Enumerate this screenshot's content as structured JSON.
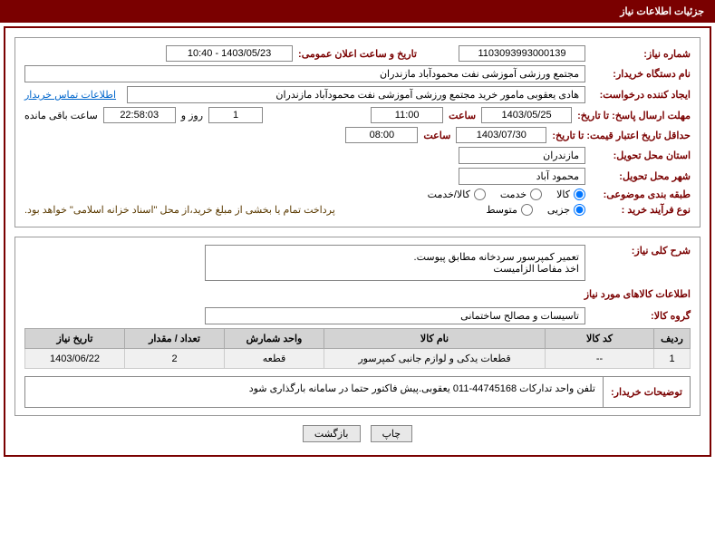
{
  "header": {
    "title": "جزئیات اطلاعات نیاز"
  },
  "need": {
    "number_label": "شماره نیاز:",
    "number": "1103093993000139",
    "announce_label": "تاریخ و ساعت اعلان عمومی:",
    "announce_value": "1403/05/23 - 10:40",
    "buyer_org_label": "نام دستگاه خریدار:",
    "buyer_org": "مجتمع ورزشی آموزشی نفت محمودآباد مازندران",
    "requester_label": "ایجاد کننده درخواست:",
    "requester": "هادی یعقوبی مامور خرید مجتمع ورزشی آموزشی نفت محمودآباد مازندران",
    "contact_link": "اطلاعات تماس خریدار",
    "response_due_label": "مهلت ارسال پاسخ: تا تاریخ:",
    "response_date": "1403/05/25",
    "time_label": "ساعت",
    "response_time": "11:00",
    "days": "1",
    "days_and": "روز و",
    "countdown": "22:58:03",
    "remaining": "ساعت باقی مانده",
    "price_valid_label": "حداقل تاریخ اعتبار قیمت: تا تاریخ:",
    "price_date": "1403/07/30",
    "price_time": "08:00",
    "delivery_province_label": "استان محل تحویل:",
    "delivery_province": "مازندران",
    "delivery_city_label": "شهر محل تحویل:",
    "delivery_city": "محمود آباد",
    "subject_class_label": "طبقه بندی موضوعی:",
    "class_options": [
      "کالا",
      "خدمت",
      "کالا/خدمت"
    ],
    "class_selected": 0,
    "process_label": "نوع فرآیند خرید :",
    "process_options": [
      "جزیی",
      "متوسط"
    ],
    "process_selected": 0,
    "payment_note": "پرداخت تمام یا بخشی از مبلغ خرید،از محل \"اسناد خزانه اسلامی\" خواهد بود."
  },
  "description": {
    "title_label": "شرح کلی نیاز:",
    "text_line1": "تعمیر کمپرسور سردخانه مطابق پیوست.",
    "text_line2": "اخذ مفاصا الزامیست"
  },
  "goods": {
    "section_title": "اطلاعات کالاهای مورد نیاز",
    "group_label": "گروه کالا:",
    "group_value": "تاسیسات و مصالح ساختمانی",
    "headers": [
      "ردیف",
      "کد کالا",
      "نام کالا",
      "واحد شمارش",
      "تعداد / مقدار",
      "تاریخ نیاز"
    ],
    "rows": [
      [
        "1",
        "--",
        "قطعات یدکی و لوازم جانبی کمپرسور",
        "قطعه",
        "2",
        "1403/06/22"
      ]
    ]
  },
  "buyer_explanation": {
    "label": "توضیحات خریدار:",
    "text": "تلفن واحد تدارکات 44745168-011 یعقوبی.پیش فاکتور حتما در سامانه بارگذاری شود"
  },
  "buttons": {
    "print": "چاپ",
    "back": "بازگشت"
  },
  "colors": {
    "primary": "#7a0000",
    "header_th": "#d3d3d3",
    "row_bg": "#f0f0f0",
    "border": "#888"
  }
}
